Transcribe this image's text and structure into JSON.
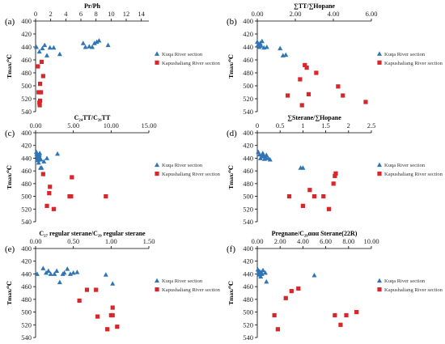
{
  "colors": {
    "kuqa": "#2E75B6",
    "kapu": "#D9262B",
    "axis": "#000000"
  },
  "chart_data": [
    {
      "panel": "(a)",
      "type": "scatter",
      "xlabel": "Pr/Ph",
      "ylabel": "Tmax/℃",
      "xlim": [
        0,
        15
      ],
      "ylim": [
        400,
        540
      ],
      "xticks": [
        "0",
        "2",
        "4",
        "6",
        "8",
        "10",
        "12",
        "14"
      ],
      "xticks_values": [
        0,
        2,
        4,
        6,
        8,
        10,
        12,
        14
      ],
      "yticks": [
        "400",
        "420",
        "440",
        "460",
        "480",
        "500",
        "520",
        "540"
      ],
      "yticks_values": [
        400,
        420,
        440,
        460,
        480,
        500,
        520,
        540
      ],
      "legend": "right",
      "series": [
        {
          "name": "Kuqa River section",
          "marker": "triangle",
          "x": [
            0.1,
            0.5,
            0.9,
            1.2,
            1.5,
            1.9,
            2.4,
            3.2,
            6.3,
            6.6,
            7.1,
            7.5,
            7.8,
            8.1,
            8.4,
            9.6
          ],
          "y": [
            440,
            447,
            442,
            437,
            453,
            441,
            441,
            451,
            434,
            440,
            439,
            440,
            434,
            432,
            430,
            437
          ]
        },
        {
          "name": "Kapushaliang River section",
          "marker": "square",
          "x": [
            0.3,
            0.4,
            0.5,
            0.55,
            0.6,
            0.6,
            0.7,
            0.8,
            1.0
          ],
          "y": [
            470,
            510,
            526,
            530,
            523,
            497,
            510,
            463,
            485
          ]
        }
      ]
    },
    {
      "panel": "(b)",
      "type": "scatter",
      "xlabel": "∑TT/∑Hopane",
      "ylabel": "Tmax/℃",
      "xlim": [
        0,
        6
      ],
      "ylim": [
        400,
        540
      ],
      "xticks": [
        "0.00",
        "2.00",
        "4.00",
        "6.00"
      ],
      "xticks_values": [
        0,
        2,
        4,
        6
      ],
      "yticks": [
        "400",
        "420",
        "440",
        "460",
        "480",
        "500",
        "520",
        "540"
      ],
      "yticks_values": [
        400,
        420,
        440,
        460,
        480,
        500,
        520,
        540
      ],
      "legend": "right",
      "series": [
        {
          "name": "Kuqa River section",
          "marker": "triangle",
          "x": [
            0.0,
            0.05,
            0.1,
            0.15,
            0.2,
            0.25,
            0.35,
            0.5,
            1.2,
            1.35,
            1.5
          ],
          "y": [
            432,
            436,
            440,
            434,
            438,
            431,
            441,
            440,
            442,
            453,
            452
          ]
        },
        {
          "name": "Kapushaliang River section",
          "marker": "square",
          "x": [
            1.6,
            2.25,
            2.35,
            2.5,
            2.6,
            2.7,
            3.1,
            4.25,
            4.5,
            5.7
          ],
          "y": [
            515,
            490,
            530,
            468,
            472,
            513,
            480,
            501,
            515,
            525
          ]
        }
      ]
    },
    {
      "panel": "(c)",
      "type": "scatter",
      "xlabel": "C₂₄TT/C₂₆TT",
      "ylabel": "Tmax/℃",
      "xlim": [
        0,
        15
      ],
      "ylim": [
        400,
        540
      ],
      "xticks": [
        "0.00",
        "5.00",
        "10.00",
        "15.00"
      ],
      "xticks_values": [
        0,
        5,
        10,
        15
      ],
      "yticks": [
        "400",
        "420",
        "440",
        "460",
        "480",
        "500",
        "520",
        "540"
      ],
      "yticks_values": [
        400,
        420,
        440,
        460,
        480,
        500,
        520,
        540
      ],
      "legend": "right",
      "series": [
        {
          "name": "Kuqa River section",
          "marker": "triangle",
          "x": [
            0.1,
            0.15,
            0.2,
            0.25,
            0.3,
            0.35,
            0.4,
            0.5,
            0.55,
            0.6,
            0.65,
            0.7,
            0.8,
            1.1,
            1.5,
            2.9
          ],
          "y": [
            430,
            433,
            436,
            440,
            443,
            438,
            447,
            435,
            432,
            440,
            455,
            442,
            455,
            445,
            440,
            433
          ]
        },
        {
          "name": "Kapushaliang River section",
          "marker": "square",
          "x": [
            1.0,
            1.5,
            1.8,
            1.9,
            2.4,
            4.5,
            4.7,
            4.8,
            9.3
          ],
          "y": [
            465,
            515,
            495,
            485,
            520,
            500,
            500,
            470,
            500
          ]
        }
      ]
    },
    {
      "panel": "(d)",
      "type": "scatter",
      "xlabel": "∑Sterane/∑Hopane",
      "ylabel": "Tmax/℃",
      "xlim": [
        0,
        2.5
      ],
      "ylim": [
        400,
        540
      ],
      "xticks": [
        "0",
        "0.5",
        "1",
        "1.5",
        "2",
        "2.5"
      ],
      "xticks_values": [
        0,
        0.5,
        1,
        1.5,
        2,
        2.5
      ],
      "yticks": [
        "400",
        "420",
        "440",
        "460",
        "480",
        "500",
        "520",
        "540"
      ],
      "yticks_values": [
        400,
        420,
        440,
        460,
        480,
        500,
        520,
        540
      ],
      "legend": "right",
      "series": [
        {
          "name": "Kuqa River section",
          "marker": "triangle",
          "x": [
            0.02,
            0.05,
            0.07,
            0.1,
            0.12,
            0.14,
            0.16,
            0.18,
            0.2,
            0.24,
            0.28,
            0.95,
            1.0
          ],
          "y": [
            430,
            434,
            440,
            437,
            432,
            436,
            441,
            438,
            435,
            440,
            442,
            455,
            455
          ]
        },
        {
          "name": "Kapushaliang River section",
          "marker": "square",
          "x": [
            0.7,
            1.0,
            1.15,
            1.25,
            1.45,
            1.57,
            1.67,
            1.7,
            1.72
          ],
          "y": [
            500,
            515,
            490,
            500,
            500,
            520,
            480,
            468,
            464
          ]
        }
      ]
    },
    {
      "panel": "(e)",
      "type": "scatter",
      "xlabel": "C₂₇ regular sterane/C₂₉ regular sterane",
      "ylabel": "Tmax/℃",
      "xlim": [
        0,
        1.5
      ],
      "ylim": [
        400,
        540
      ],
      "xticks": [
        "0.00",
        "0.50",
        "1.00",
        "1.50"
      ],
      "xticks_values": [
        0,
        0.5,
        1,
        1.5
      ],
      "yticks": [
        "400",
        "420",
        "440",
        "460",
        "480",
        "500",
        "520",
        "540"
      ],
      "yticks_values": [
        400,
        420,
        440,
        460,
        480,
        500,
        520,
        540
      ],
      "legend": "right",
      "series": [
        {
          "name": "Kuqa River section",
          "marker": "triangle",
          "x": [
            0.02,
            0.1,
            0.14,
            0.17,
            0.2,
            0.25,
            0.28,
            0.32,
            0.36,
            0.38,
            0.42,
            0.46,
            0.5,
            0.55,
            0.93,
            1.02
          ],
          "y": [
            440,
            431,
            438,
            435,
            440,
            440,
            435,
            453,
            440,
            438,
            432,
            440,
            438,
            437,
            441,
            455
          ]
        },
        {
          "name": "Kapushaliang River section",
          "marker": "square",
          "x": [
            0.58,
            0.68,
            0.8,
            0.82,
            0.95,
            1.0,
            1.02,
            1.02,
            1.08
          ],
          "y": [
            482,
            465,
            465,
            507,
            527,
            505,
            505,
            493,
            523
          ]
        }
      ]
    },
    {
      "panel": "(f)",
      "type": "scatter",
      "xlabel": "Pregnane/C₂₉ααα Sterane(22R)",
      "ylabel": "Tmax/℃",
      "xlim": [
        0,
        10
      ],
      "ylim": [
        400,
        540
      ],
      "xticks": [
        "0.00",
        "2.00",
        "4.00",
        "6.00",
        "8.00",
        "10.00"
      ],
      "xticks_values": [
        0,
        2,
        4,
        6,
        8,
        10
      ],
      "yticks": [
        "400",
        "420",
        "440",
        "460",
        "480",
        "500",
        "520",
        "540"
      ],
      "yticks_values": [
        400,
        420,
        440,
        460,
        480,
        500,
        520,
        540
      ],
      "legend": "right",
      "series": [
        {
          "name": "Kuqa River section",
          "marker": "triangle",
          "x": [
            0.05,
            0.1,
            0.15,
            0.2,
            0.25,
            0.3,
            0.35,
            0.4,
            0.5,
            0.7,
            0.8,
            5.0
          ],
          "y": [
            433,
            438,
            441,
            436,
            440,
            444,
            437,
            440,
            434,
            438,
            452,
            442
          ]
        },
        {
          "name": "Kapushaliang River section",
          "marker": "square",
          "x": [
            1.5,
            1.8,
            2.5,
            3.0,
            3.6,
            6.8,
            7.3,
            7.8,
            8.7
          ],
          "y": [
            505,
            527,
            478,
            467,
            463,
            505,
            520,
            505,
            500
          ]
        }
      ]
    }
  ]
}
